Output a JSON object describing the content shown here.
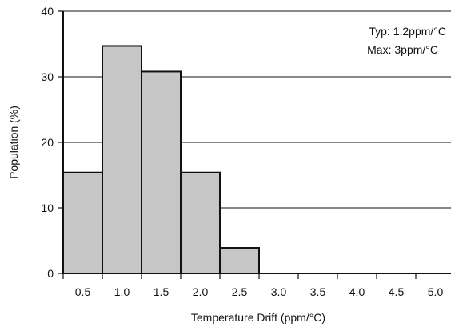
{
  "chart_data": {
    "type": "bar",
    "title": "",
    "xlabel": "Temperature Drift (ppm/°C)",
    "ylabel": "Population (%)",
    "categories": [
      "0.5",
      "1.0",
      "1.5",
      "2.0",
      "2.5",
      "3.0",
      "3.5",
      "4.0",
      "4.5",
      "5.0"
    ],
    "values": [
      15.4,
      34.7,
      30.8,
      15.4,
      3.9,
      0,
      0,
      0,
      0,
      0
    ],
    "ylim": [
      0,
      40
    ],
    "yticks": [
      "0",
      "10",
      "20",
      "30",
      "40"
    ],
    "grid": "horizontal",
    "legend": "none",
    "annotations": [
      "Typ: 1.2ppm/°C",
      "Max: 3ppm/°C"
    ],
    "colors": {
      "bar_fill": "#c6c6c6",
      "bar_stroke": "#111111",
      "axis": "#111111",
      "grid": "#111111"
    }
  }
}
